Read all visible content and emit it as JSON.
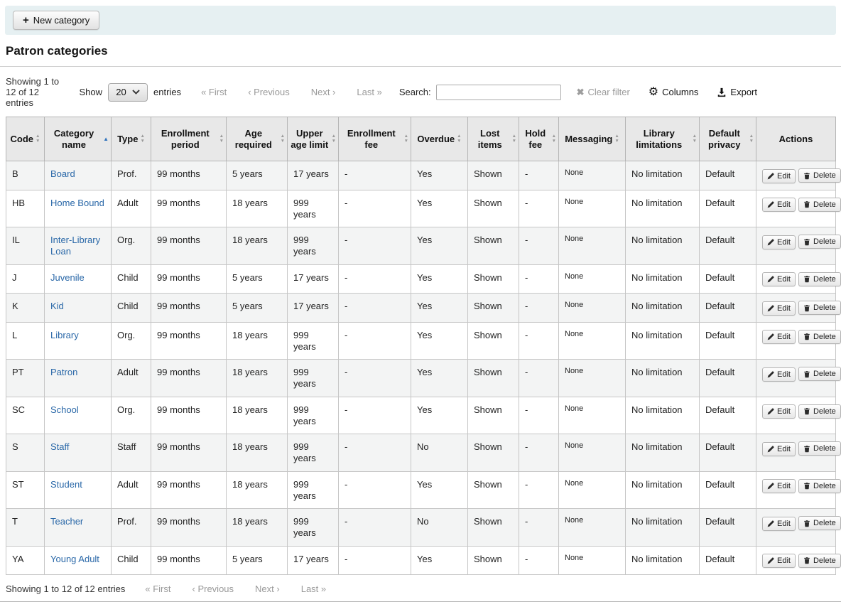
{
  "toolbar": {
    "new_category": "New category"
  },
  "page_title": "Patron categories",
  "controls": {
    "info": "Showing 1 to 12 of 12 entries",
    "show": "Show",
    "page_size": "20",
    "entries": "entries",
    "pagination": {
      "first": "« First",
      "previous": "‹ Previous",
      "next": "Next ›",
      "last": "Last »"
    },
    "search_label": "Search:",
    "search_value": "",
    "clear_filter": "Clear filter",
    "columns": "Columns",
    "export": "Export"
  },
  "table": {
    "columns": [
      {
        "label": "Code",
        "sort": "both"
      },
      {
        "label": "Category name",
        "sort": "asc"
      },
      {
        "label": "Type",
        "sort": "both"
      },
      {
        "label": "Enrollment period",
        "sort": "both"
      },
      {
        "label": "Age required",
        "sort": "both"
      },
      {
        "label": "Upper age limit",
        "sort": "both"
      },
      {
        "label": "Enrollment fee",
        "sort": "both"
      },
      {
        "label": "Overdue",
        "sort": "both"
      },
      {
        "label": "Lost items",
        "sort": "both"
      },
      {
        "label": "Hold fee",
        "sort": "both"
      },
      {
        "label": "Messaging",
        "sort": "both"
      },
      {
        "label": "Library limitations",
        "sort": "both"
      },
      {
        "label": "Default privacy",
        "sort": "both"
      },
      {
        "label": "Actions",
        "sort": "none"
      }
    ],
    "actions": {
      "edit": "Edit",
      "delete": "Delete"
    },
    "rows": [
      {
        "code": "B",
        "name": "Board",
        "type": "Prof.",
        "enrollment_period": "99 months",
        "age_required": "5 years",
        "upper_age_limit": "17 years",
        "enrollment_fee": "-",
        "overdue": "Yes",
        "lost_items": "Shown",
        "hold_fee": "-",
        "messaging": "None",
        "library_limitations": "No limitation",
        "default_privacy": "Default"
      },
      {
        "code": "HB",
        "name": "Home Bound",
        "type": "Adult",
        "enrollment_period": "99 months",
        "age_required": "18 years",
        "upper_age_limit": "999 years",
        "enrollment_fee": "-",
        "overdue": "Yes",
        "lost_items": "Shown",
        "hold_fee": "-",
        "messaging": "None",
        "library_limitations": "No limitation",
        "default_privacy": "Default"
      },
      {
        "code": "IL",
        "name": "Inter-Library Loan",
        "type": "Org.",
        "enrollment_period": "99 months",
        "age_required": "18 years",
        "upper_age_limit": "999 years",
        "enrollment_fee": "-",
        "overdue": "Yes",
        "lost_items": "Shown",
        "hold_fee": "-",
        "messaging": "None",
        "library_limitations": "No limitation",
        "default_privacy": "Default"
      },
      {
        "code": "J",
        "name": "Juvenile",
        "type": "Child",
        "enrollment_period": "99 months",
        "age_required": "5 years",
        "upper_age_limit": "17 years",
        "enrollment_fee": "-",
        "overdue": "Yes",
        "lost_items": "Shown",
        "hold_fee": "-",
        "messaging": "None",
        "library_limitations": "No limitation",
        "default_privacy": "Default"
      },
      {
        "code": "K",
        "name": "Kid",
        "type": "Child",
        "enrollment_period": "99 months",
        "age_required": "5 years",
        "upper_age_limit": "17 years",
        "enrollment_fee": "-",
        "overdue": "Yes",
        "lost_items": "Shown",
        "hold_fee": "-",
        "messaging": "None",
        "library_limitations": "No limitation",
        "default_privacy": "Default"
      },
      {
        "code": "L",
        "name": "Library",
        "type": "Org.",
        "enrollment_period": "99 months",
        "age_required": "18 years",
        "upper_age_limit": "999 years",
        "enrollment_fee": "-",
        "overdue": "Yes",
        "lost_items": "Shown",
        "hold_fee": "-",
        "messaging": "None",
        "library_limitations": "No limitation",
        "default_privacy": "Default"
      },
      {
        "code": "PT",
        "name": "Patron",
        "type": "Adult",
        "enrollment_period": "99 months",
        "age_required": "18 years",
        "upper_age_limit": "999 years",
        "enrollment_fee": "-",
        "overdue": "Yes",
        "lost_items": "Shown",
        "hold_fee": "-",
        "messaging": "None",
        "library_limitations": "No limitation",
        "default_privacy": "Default"
      },
      {
        "code": "SC",
        "name": "School",
        "type": "Org.",
        "enrollment_period": "99 months",
        "age_required": "18 years",
        "upper_age_limit": "999 years",
        "enrollment_fee": "-",
        "overdue": "Yes",
        "lost_items": "Shown",
        "hold_fee": "-",
        "messaging": "None",
        "library_limitations": "No limitation",
        "default_privacy": "Default"
      },
      {
        "code": "S",
        "name": "Staff",
        "type": "Staff",
        "enrollment_period": "99 months",
        "age_required": "18 years",
        "upper_age_limit": "999 years",
        "enrollment_fee": "-",
        "overdue": "No",
        "lost_items": "Shown",
        "hold_fee": "-",
        "messaging": "None",
        "library_limitations": "No limitation",
        "default_privacy": "Default"
      },
      {
        "code": "ST",
        "name": "Student",
        "type": "Adult",
        "enrollment_period": "99 months",
        "age_required": "18 years",
        "upper_age_limit": "999 years",
        "enrollment_fee": "-",
        "overdue": "Yes",
        "lost_items": "Shown",
        "hold_fee": "-",
        "messaging": "None",
        "library_limitations": "No limitation",
        "default_privacy": "Default"
      },
      {
        "code": "T",
        "name": "Teacher",
        "type": "Prof.",
        "enrollment_period": "99 months",
        "age_required": "18 years",
        "upper_age_limit": "999 years",
        "enrollment_fee": "-",
        "overdue": "No",
        "lost_items": "Shown",
        "hold_fee": "-",
        "messaging": "None",
        "library_limitations": "No limitation",
        "default_privacy": "Default"
      },
      {
        "code": "YA",
        "name": "Young Adult",
        "type": "Child",
        "enrollment_period": "99 months",
        "age_required": "5 years",
        "upper_age_limit": "17 years",
        "enrollment_fee": "-",
        "overdue": "Yes",
        "lost_items": "Shown",
        "hold_fee": "-",
        "messaging": "None",
        "library_limitations": "No limitation",
        "default_privacy": "Default"
      }
    ]
  },
  "colors": {
    "toolbar_bg": "#e6f0f2",
    "header_bg": "#e8e8e8",
    "stripe": "#f3f4f4",
    "link": "#2a68a8",
    "sort_active": "#3274bd",
    "muted_text": "#999999"
  }
}
